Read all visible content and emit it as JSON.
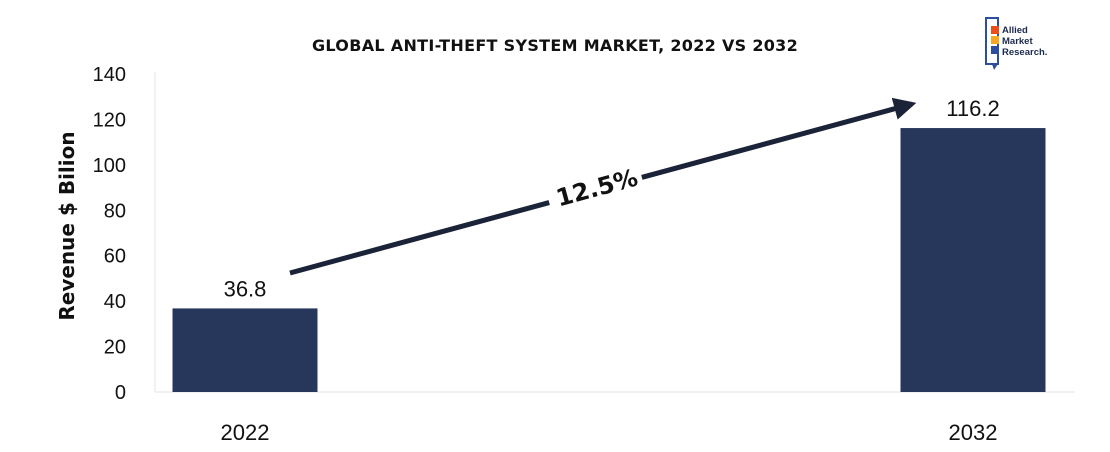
{
  "chart_data": {
    "type": "bar",
    "title": "GLOBAL ANTI-THEFT SYSTEM MARKET, 2022 VS 2032",
    "ylabel": "Revenue $ Bilion",
    "xlabel": "",
    "categories": [
      "2022",
      "2032"
    ],
    "values": [
      36.8,
      116.2
    ],
    "value_labels": [
      "36.8",
      "116.2"
    ],
    "ylim": [
      0,
      140
    ],
    "yticks": [
      "0",
      "20",
      "40",
      "60",
      "80",
      "100",
      "120",
      "140"
    ],
    "bar_color": "#26375b",
    "grid": false,
    "legend": "none",
    "annotation": {
      "text": "12.5%",
      "type": "growth-arrow",
      "color": "#1b2338"
    }
  },
  "brand": {
    "logo_lines": [
      "Allied",
      "Market",
      "Research."
    ],
    "logo_colors": [
      "#e94e1b",
      "#f7a823",
      "#2b4f9e",
      "#1a2a4f"
    ]
  }
}
